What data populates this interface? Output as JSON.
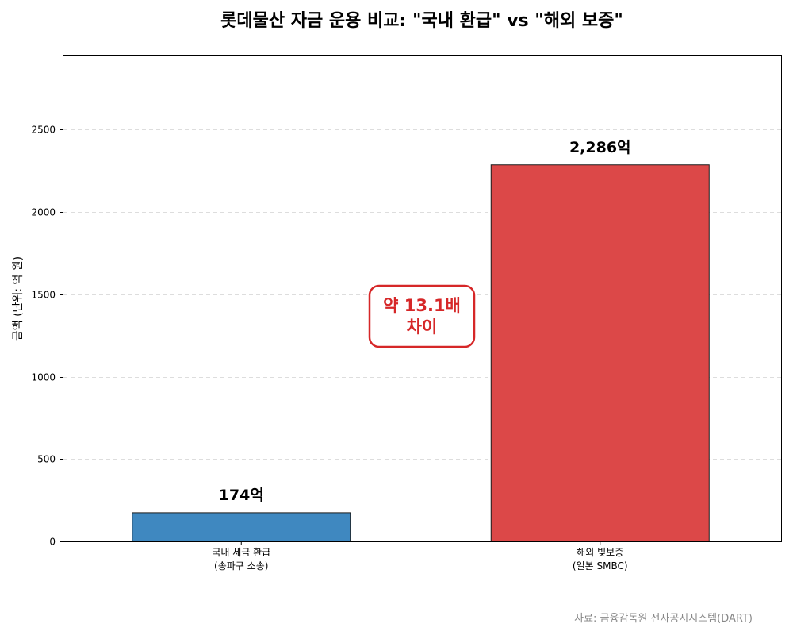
{
  "chart_data": {
    "type": "bar",
    "title": "롯데물산 자금 운용 비교: \"국내 환급\" vs \"해외 보증\"",
    "ylabel": "금액 (단위: 억 원)",
    "xlabel": "",
    "ylim": [
      0,
      2950
    ],
    "yticks": [
      0,
      500,
      1000,
      1500,
      2000,
      2500
    ],
    "grid": true,
    "categories": [
      {
        "line1": "국내 세금 환급",
        "line2": "(송파구 소송)"
      },
      {
        "line1": "해외 빚보증",
        "line2": "(일본 SMBC)"
      }
    ],
    "values": [
      174,
      2286
    ],
    "value_labels": [
      "174억",
      "2,286억"
    ],
    "colors": [
      "#3f88c0",
      "#dc4848"
    ],
    "annotation": {
      "line1": "약 13.1배",
      "line2": "차이",
      "color": "#d62728"
    },
    "source": "자료: 금융감독원 전자공시시스템(DART)"
  }
}
